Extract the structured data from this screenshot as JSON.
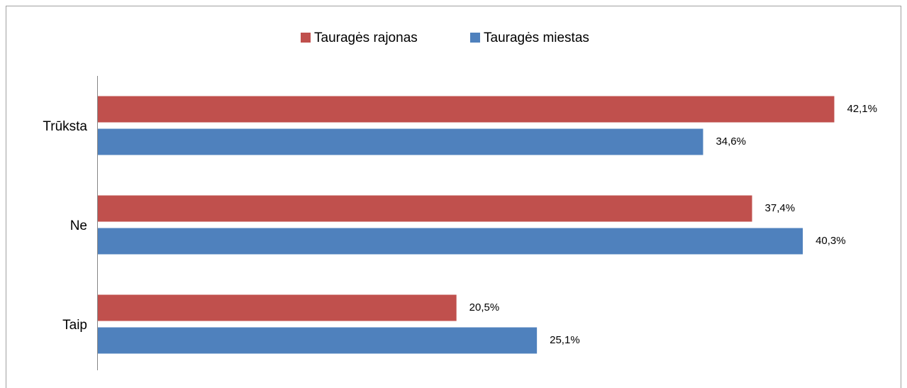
{
  "chart_data": {
    "type": "barh",
    "categories": [
      "Trūksta",
      "Ne",
      "Taip"
    ],
    "series": [
      {
        "name": "Tauragės rajonas",
        "color": "#c0504d",
        "values": [
          42.1,
          37.4,
          20.5
        ],
        "value_labels": [
          "42,1%",
          "37,4%",
          "20,5%"
        ]
      },
      {
        "name": "Tauragės miestas",
        "color": "#4f81bd",
        "values": [
          34.6,
          40.3,
          25.1
        ],
        "value_labels": [
          "34,6%",
          "40,3%",
          "25,1%"
        ]
      }
    ],
    "xlim": [
      0,
      45
    ],
    "legend": "top"
  }
}
